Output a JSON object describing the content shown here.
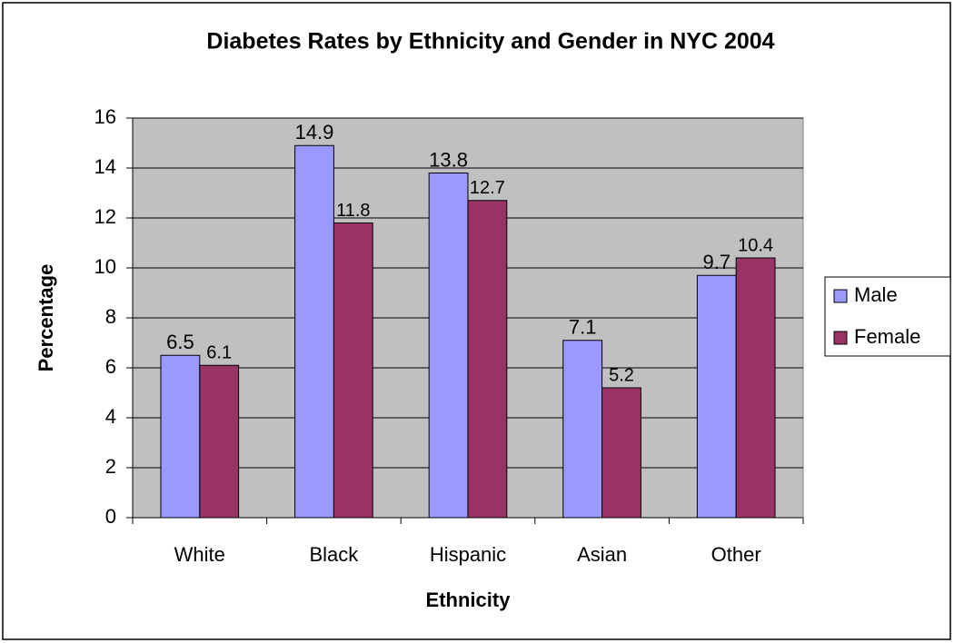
{
  "chart_data": {
    "type": "bar",
    "title": "Diabetes Rates by Ethnicity and Gender in NYC 2004",
    "x_label": "Ethnicity",
    "y_label": "Percentage",
    "categories": [
      "White",
      "Black",
      "Hispanic",
      "Asian",
      "Other"
    ],
    "series": [
      {
        "name": "Male",
        "color": "#9999ff",
        "values": [
          6.5,
          14.9,
          13.8,
          7.1,
          9.7
        ]
      },
      {
        "name": "Female",
        "color": "#993366",
        "values": [
          6.1,
          11.8,
          12.7,
          5.2,
          10.4
        ]
      }
    ],
    "ylim": [
      0,
      16
    ],
    "yticks": [
      0,
      2,
      4,
      6,
      8,
      10,
      12,
      14,
      16
    ],
    "grid": true,
    "legend": "right"
  }
}
